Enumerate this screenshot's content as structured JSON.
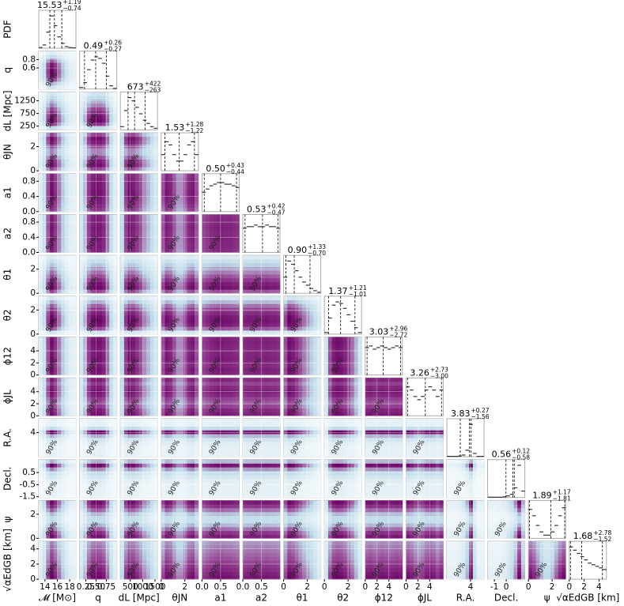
{
  "chart_data": {
    "type": "corner",
    "pdf_label": "PDF",
    "contour_label": "90%",
    "colormap": [
      "#f5fafc",
      "#bcd9e8",
      "#9a4b98",
      "#680062"
    ],
    "line_color": "#333333",
    "grid": true,
    "parameters": [
      {
        "label": "𝓜 [M⊙]",
        "lim": [
          13,
          19
        ],
        "xticks": [
          14,
          16,
          18
        ],
        "yticks": [],
        "median": {
          "value": 15.53,
          "label": "15.53"
        },
        "upper": {
          "value": 1.19,
          "label": "+1.19"
        },
        "lower": {
          "value": 0.74,
          "label": "−0.74"
        },
        "pdf": [
          0.02,
          0.1,
          0.5,
          1,
          0.7,
          0.35,
          0.15,
          0.05,
          0.02,
          0.01
        ]
      },
      {
        "label": "q",
        "lim": [
          0.1,
          1.0
        ],
        "xticks": [
          {
            "value": 0.25,
            "label": "0.25"
          },
          {
            "value": 0.5,
            "label": "0.50"
          },
          {
            "value": 0.75,
            "label": "0.75"
          }
        ],
        "yticks": [
          0.6,
          0.8
        ],
        "median": {
          "value": 0.49,
          "label": "0.49"
        },
        "upper": {
          "value": 0.26,
          "label": "+0.26"
        },
        "lower": {
          "value": 0.27,
          "label": "−0.27"
        },
        "pdf": [
          0.05,
          0.2,
          0.6,
          0.9,
          1,
          0.95,
          0.8,
          0.4,
          0.1,
          0.02
        ]
      },
      {
        "label": "dL [Mpc]",
        "lim": [
          100,
          1600
        ],
        "xticks": [
          500,
          1000,
          1500
        ],
        "yticks": [
          250,
          750,
          1250
        ],
        "median": {
          "value": 673,
          "label": "673"
        },
        "upper": {
          "value": 422,
          "label": "+422"
        },
        "lower": {
          "value": 263,
          "label": "−263"
        },
        "pdf": [
          0.1,
          0.6,
          1,
          0.9,
          0.7,
          0.5,
          0.3,
          0.2,
          0.1,
          0.05
        ]
      },
      {
        "label": "θJN",
        "lim": [
          0,
          3.14
        ],
        "xticks": [
          0,
          2
        ],
        "yticks": [
          0,
          2
        ],
        "median": {
          "value": 1.53,
          "label": "1.53"
        },
        "upper": {
          "value": 1.28,
          "label": "+1.28"
        },
        "lower": {
          "value": 1.22,
          "label": "−1.22"
        },
        "pdf": [
          0.5,
          0.9,
          0.8,
          0.5,
          0.3,
          0.3,
          0.5,
          0.8,
          0.9,
          0.5
        ]
      },
      {
        "label": "a1",
        "lim": [
          0,
          1
        ],
        "xticks": [
          {
            "value": 0,
            "label": "0.0"
          },
          {
            "value": 0.5,
            "label": "0.5"
          }
        ],
        "yticks": [
          {
            "value": 0,
            "label": "0.0"
          },
          {
            "value": 0.4,
            "label": "0.4"
          },
          {
            "value": 0.8,
            "label": "0.8"
          }
        ],
        "median": {
          "value": 0.5,
          "label": "0.50"
        },
        "upper": {
          "value": 0.43,
          "label": "+0.43"
        },
        "lower": {
          "value": 0.44,
          "label": "−0.44"
        },
        "pdf": [
          0.6,
          0.7,
          0.8,
          0.85,
          0.9,
          0.9,
          0.85,
          0.85,
          0.8,
          0.75
        ]
      },
      {
        "label": "a2",
        "lim": [
          0,
          1
        ],
        "xticks": [
          {
            "value": 0,
            "label": "0.0"
          },
          {
            "value": 0.5,
            "label": "0.5"
          }
        ],
        "yticks": [
          {
            "value": 0,
            "label": "0.0"
          },
          {
            "value": 0.4,
            "label": "0.4"
          },
          {
            "value": 0.8,
            "label": "0.8"
          }
        ],
        "median": {
          "value": 0.53,
          "label": "0.53"
        },
        "upper": {
          "value": 0.42,
          "label": "+0.42"
        },
        "lower": {
          "value": 0.47,
          "label": "−0.47"
        },
        "pdf": [
          0.75,
          0.8,
          0.8,
          0.85,
          0.8,
          0.8,
          0.85,
          0.8,
          0.8,
          0.75
        ]
      },
      {
        "label": "θ1",
        "lim": [
          0,
          3.14
        ],
        "xticks": [
          0,
          2
        ],
        "yticks": [
          0,
          2
        ],
        "median": {
          "value": 0.9,
          "label": "0.90"
        },
        "upper": {
          "value": 1.33,
          "label": "+1.33"
        },
        "lower": {
          "value": 0.7,
          "label": "−0.70"
        },
        "pdf": [
          0.5,
          1,
          0.9,
          0.7,
          0.5,
          0.35,
          0.25,
          0.15,
          0.08,
          0.03
        ]
      },
      {
        "label": "θ2",
        "lim": [
          0,
          3.14
        ],
        "xticks": [
          0,
          2
        ],
        "yticks": [
          0,
          2
        ],
        "median": {
          "value": 1.37,
          "label": "1.37"
        },
        "upper": {
          "value": 1.21,
          "label": "+1.21"
        },
        "lower": {
          "value": 1.01,
          "label": "−1.01"
        },
        "pdf": [
          0.05,
          0.5,
          0.9,
          1,
          0.95,
          0.8,
          0.6,
          0.4,
          0.2,
          0.05
        ]
      },
      {
        "label": "ϕ12",
        "lim": [
          0,
          6.28
        ],
        "xticks": [
          0,
          2,
          4
        ],
        "yticks": [
          0,
          2,
          4
        ],
        "median": {
          "value": 3.03,
          "label": "3.03"
        },
        "upper": {
          "value": 2.96,
          "label": "+2.96"
        },
        "lower": {
          "value": 2.72,
          "label": "−2.72"
        },
        "pdf": [
          0.85,
          0.9,
          0.8,
          0.85,
          0.9,
          0.85,
          0.8,
          0.85,
          0.9,
          0.85
        ]
      },
      {
        "label": "ϕJL",
        "lim": [
          0,
          6.28
        ],
        "xticks": [
          0,
          2,
          4
        ],
        "yticks": [
          0,
          2,
          4
        ],
        "median": {
          "value": 3.26,
          "label": "3.26"
        },
        "upper": {
          "value": 2.73,
          "label": "+2.73"
        },
        "lower": {
          "value": 3.0,
          "label": "−3.00"
        },
        "pdf": [
          0.9,
          0.8,
          0.6,
          0.5,
          0.6,
          0.8,
          0.9,
          0.8,
          0.6,
          0.8
        ]
      },
      {
        "label": "R.A.",
        "lim": [
          0,
          6.28
        ],
        "xticks": [
          4
        ],
        "yticks": [
          4
        ],
        "median": {
          "value": 3.83,
          "label": "3.83"
        },
        "upper": {
          "value": 0.27,
          "label": "+0.27"
        },
        "lower": {
          "value": 1.56,
          "label": "−1.56"
        },
        "pdf": [
          0.01,
          0.01,
          0.01,
          0.02,
          0.05,
          0.2,
          1,
          0.1,
          0.01,
          0.01
        ]
      },
      {
        "label": "Decl.",
        "lim": [
          -1.57,
          1.57
        ],
        "xticks": [
          -1,
          0
        ],
        "yticks": [
          -1.5,
          -0.5,
          0.5
        ],
        "median": {
          "value": 0.56,
          "label": "0.56"
        },
        "upper": {
          "value": 0.12,
          "label": "+0.12"
        },
        "lower": {
          "value": 0.58,
          "label": "−0.58"
        },
        "pdf": [
          0.01,
          0.01,
          0.01,
          0.01,
          0.02,
          0.05,
          0.1,
          0.3,
          1,
          0.2
        ]
      },
      {
        "label": "ψ",
        "lim": [
          0,
          3.14
        ],
        "xticks": [
          0,
          2
        ],
        "yticks": [
          0,
          2
        ],
        "median": {
          "value": 1.89,
          "label": "1.89"
        },
        "upper": {
          "value": 1.17,
          "label": "+1.17"
        },
        "lower": {
          "value": 1.81,
          "label": "−1.81"
        },
        "pdf": [
          0.9,
          0.7,
          0.4,
          0.2,
          0.1,
          0.1,
          0.2,
          0.4,
          0.7,
          0.95
        ]
      },
      {
        "label": "√αEdGB [km]",
        "lim": [
          0,
          5
        ],
        "xticks": [
          0,
          2,
          4
        ],
        "yticks": [
          0,
          2,
          4
        ],
        "median": {
          "value": 1.68,
          "label": "1.68"
        },
        "upper": {
          "value": 2.78,
          "label": "+2.78"
        },
        "lower": {
          "value": 1.52,
          "label": "−1.52"
        },
        "pdf": [
          1,
          0.9,
          0.8,
          0.7,
          0.6,
          0.5,
          0.45,
          0.4,
          0.35,
          0.3
        ]
      }
    ]
  }
}
